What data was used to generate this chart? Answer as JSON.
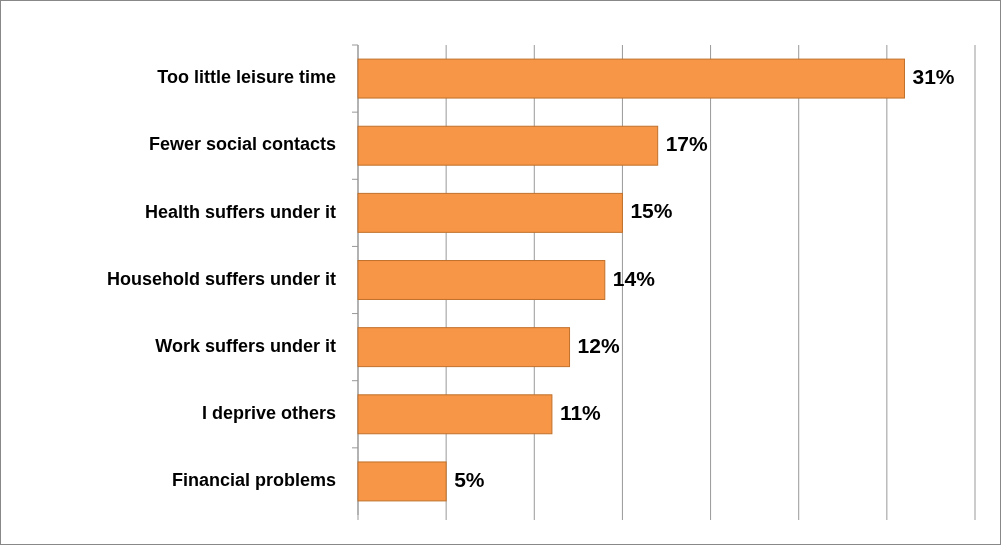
{
  "chart_data": {
    "type": "bar",
    "orientation": "horizontal",
    "categories": [
      "Too little leisure time",
      "Fewer social contacts",
      "Health suffers under it",
      "Household suffers under it",
      "Work suffers under it",
      "I deprive others",
      "Financial problems"
    ],
    "values": [
      31,
      17,
      15,
      14,
      12,
      11,
      5
    ],
    "value_labels": [
      "31%",
      "17%",
      "15%",
      "14%",
      "12%",
      "11%",
      "5%"
    ],
    "color": "#f79646",
    "xlim": [
      0,
      35
    ],
    "xticks": [
      {
        "value": 0,
        "label": null
      },
      {
        "value": 5,
        "label": null
      },
      {
        "value": 10,
        "label": null
      },
      {
        "value": 15,
        "label": null
      },
      {
        "value": 20,
        "label": null
      },
      {
        "value": 25,
        "label": null
      },
      {
        "value": 30,
        "label": null
      },
      {
        "value": 35,
        "label": null
      }
    ],
    "grid": "x",
    "tick_labels": "y"
  }
}
